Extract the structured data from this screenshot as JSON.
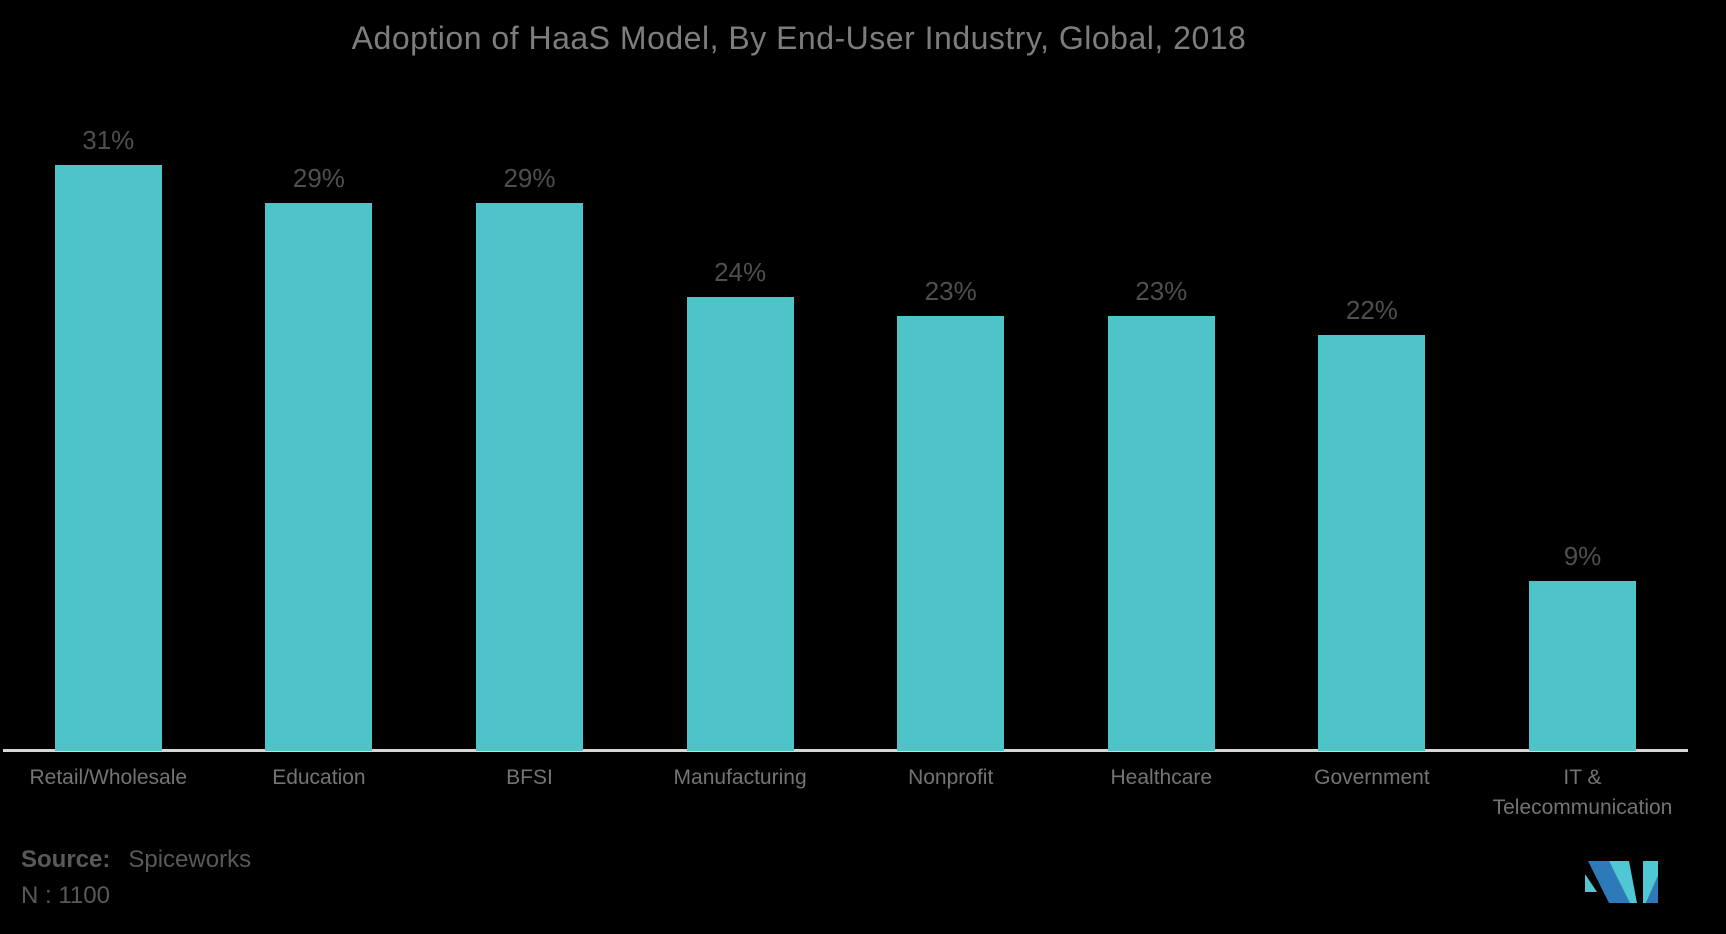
{
  "chart_data": {
    "type": "bar",
    "title": "Adoption of HaaS Model, By End-User Industry, Global, 2018",
    "categories": [
      "Retail/Wholesale",
      "Education",
      "BFSI",
      "Manufacturing",
      "Nonprofit",
      "Healthcare",
      "Government",
      "IT & Telecommunication"
    ],
    "values": [
      31,
      29,
      29,
      24,
      23,
      23,
      22,
      9
    ],
    "data_labels": [
      "31%",
      "29%",
      "29%",
      "24%",
      "23%",
      "23%",
      "22%",
      "9%"
    ],
    "unit": "%",
    "xlabel": "",
    "ylabel": "",
    "ylim": [
      0,
      33
    ],
    "grid": false,
    "legend": false,
    "bar_color": "#4EC4C9",
    "background": "#000000"
  },
  "footer": {
    "source_label": "Source:",
    "source_value": "Spiceworks",
    "sample_size": "N : 1100"
  },
  "logo": {
    "name": "mordor-intelligence-logo",
    "teal": "#4FC8D4",
    "blue": "#2E79B8"
  },
  "colors": {
    "title": "#7D7D7D",
    "data_label": "#4F4F4F",
    "axis_label": "#747474",
    "axis_line": "#D6D6D6",
    "footer_text": "#595959"
  }
}
